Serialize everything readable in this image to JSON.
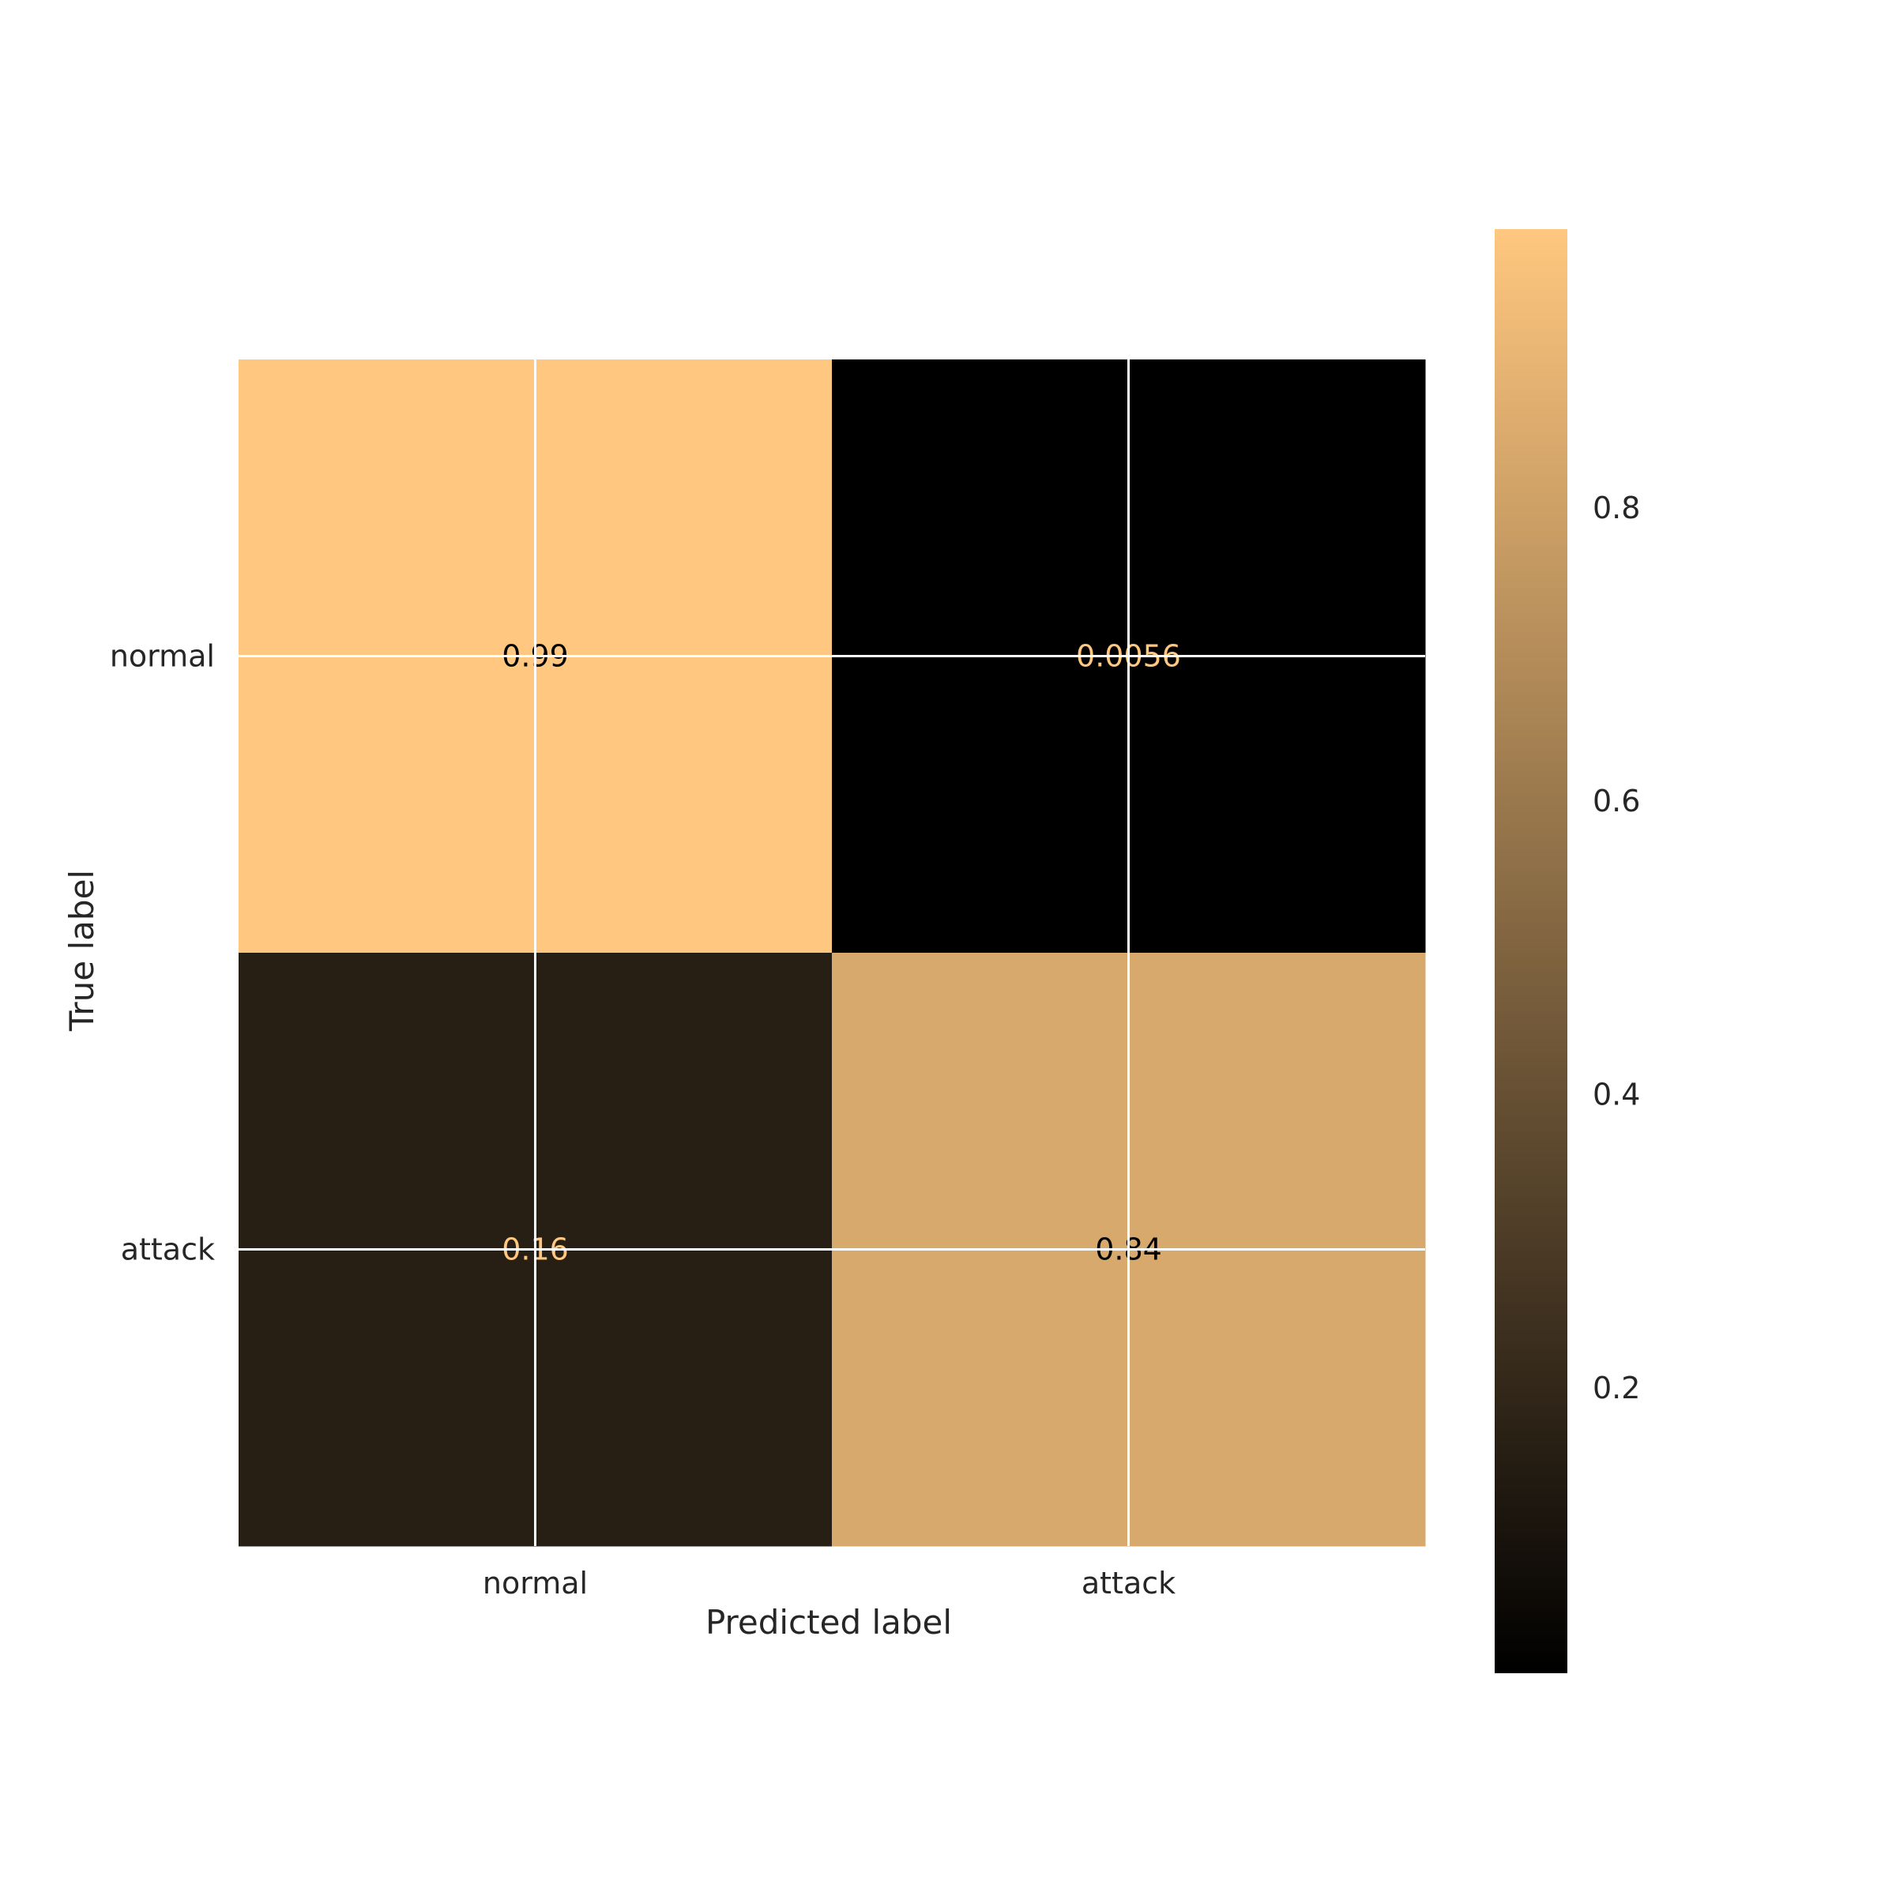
{
  "chart_data": {
    "type": "heatmap",
    "title": "",
    "xlabel": "Predicted label",
    "ylabel": "True label",
    "x_categories": [
      "normal",
      "attack"
    ],
    "y_categories": [
      "normal",
      "attack"
    ],
    "values": [
      [
        0.99,
        0.0056
      ],
      [
        0.16,
        0.84
      ]
    ],
    "value_labels": [
      [
        "0.99",
        "0.0056"
      ],
      [
        "0.16",
        "0.84"
      ]
    ],
    "colormap": "copper",
    "colormap_stops": [
      "#000000",
      "#ffc77f"
    ],
    "color_range": [
      0.0056,
      0.99
    ],
    "colorbar_ticks": [
      0.2,
      0.4,
      0.6,
      0.8
    ],
    "colorbar_tick_labels": [
      "0.2",
      "0.4",
      "0.6",
      "0.8"
    ],
    "grid": true,
    "grid_color": "#ffffff",
    "label_color_dark": "#000000",
    "label_color_light": "#ffc77f"
  }
}
